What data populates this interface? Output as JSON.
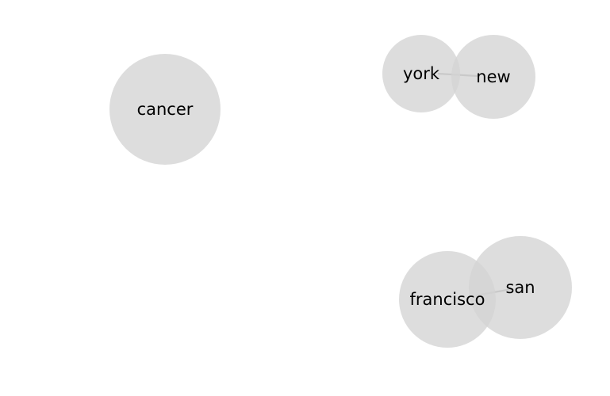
{
  "graph": {
    "node_color": "#d3d3d3",
    "edge_color": "#888888",
    "label_color": "#000000",
    "nodes": [
      {
        "id": "cancer",
        "label": "cancer"
      },
      {
        "id": "york",
        "label": "york"
      },
      {
        "id": "new",
        "label": "new"
      },
      {
        "id": "san",
        "label": "san"
      },
      {
        "id": "francisco",
        "label": "francisco"
      }
    ],
    "edges": [
      {
        "source": "york",
        "target": "new"
      },
      {
        "source": "francisco",
        "target": "san"
      }
    ]
  }
}
